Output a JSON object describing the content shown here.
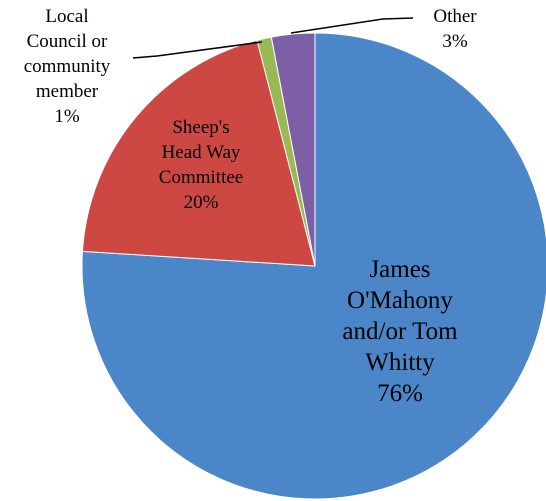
{
  "chart_data": {
    "type": "pie",
    "categories": [
      "James O'Mahony and/or Tom Whitty",
      "Sheep's Head Way Committee",
      "Local Council or community member",
      "Other"
    ],
    "values": [
      76,
      20,
      1,
      3
    ],
    "percent_labels": [
      "76%",
      "20%",
      "1%",
      "3%"
    ],
    "label_lines": [
      [
        "James",
        "O'Mahony",
        "and/or Tom",
        "Whitty"
      ],
      [
        "Sheep's",
        "Head Way",
        "Committee"
      ],
      [
        "Local",
        "Council or",
        "community",
        "member"
      ],
      [
        "Other"
      ]
    ],
    "colors": [
      "#4a86c8",
      "#cd4843",
      "#98b954",
      "#7c5fa4"
    ],
    "start_angle_deg": 0,
    "direction": "clockwise",
    "legend": "none"
  }
}
